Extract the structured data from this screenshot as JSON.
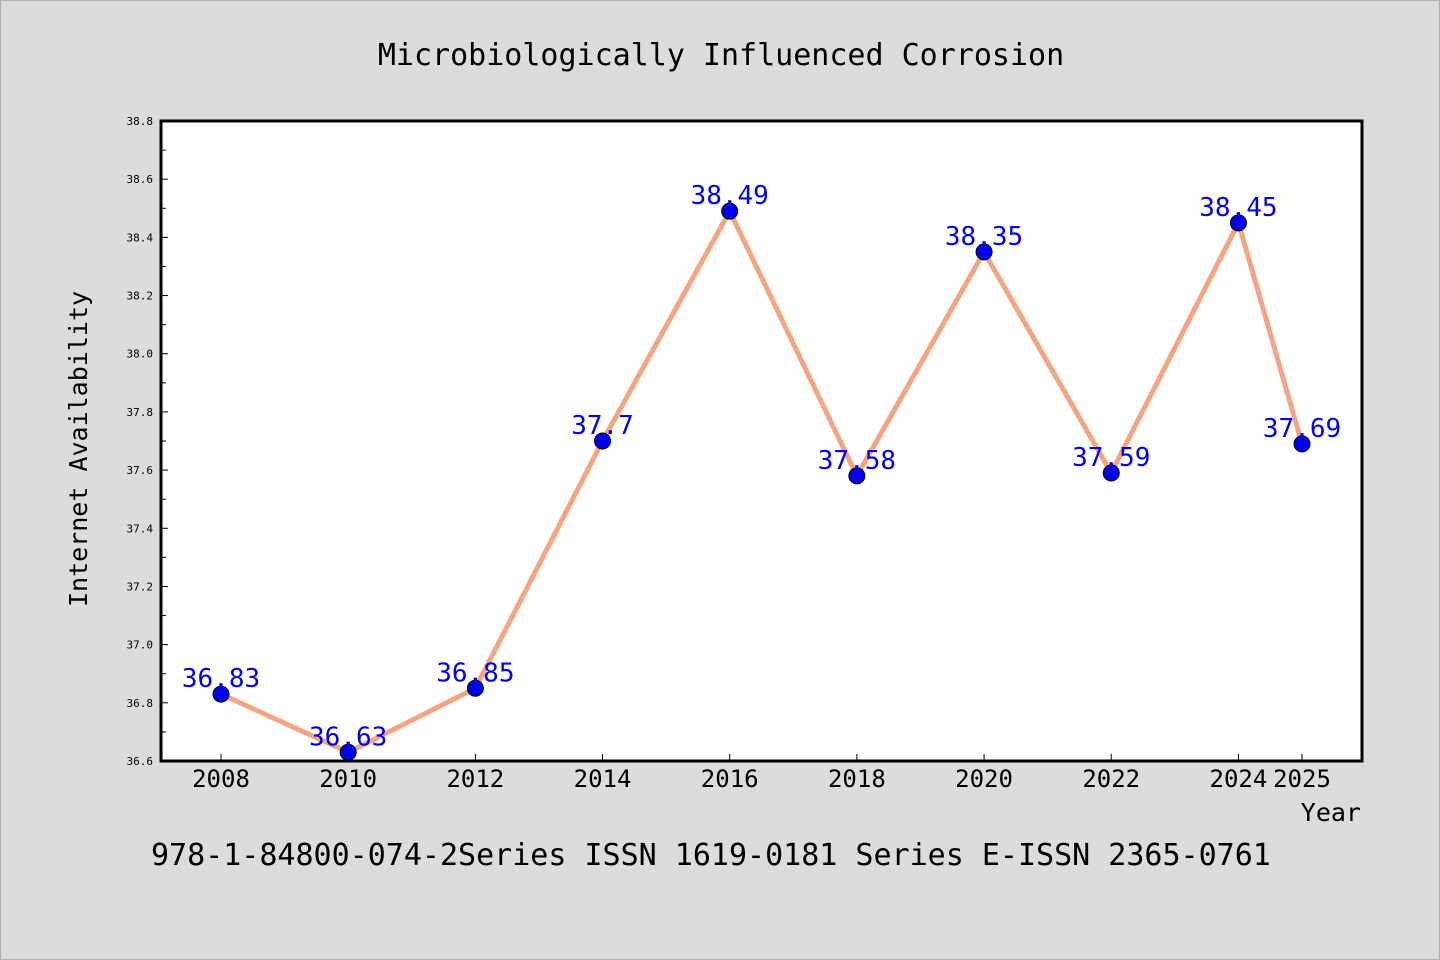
{
  "chart_data": {
    "type": "line",
    "title": "Microbiologically Influenced Corrosion",
    "xlabel": "Year",
    "ylabel": "Internet Availability",
    "footer": "978-1-84800-074-2Series ISSN 1619-0181 Series E-ISSN 2365-0761",
    "categories": [
      "2008",
      "2010",
      "2012",
      "2014",
      "2016",
      "2018",
      "2020",
      "2022",
      "2024",
      "2025"
    ],
    "series": [
      {
        "values": [
          36.83,
          36.63,
          36.85,
          37.7,
          38.49,
          37.58,
          38.35,
          37.59,
          38.45,
          37.69
        ],
        "value_labels": [
          "36.83",
          "36.63",
          "36.85",
          "37.7",
          "38.49",
          "37.58",
          "38.35",
          "37.59",
          "38.45",
          "37.69"
        ],
        "line_color": "#f4a582",
        "marker_color": "#0000ee"
      }
    ],
    "ylim": [
      36.6,
      38.8
    ],
    "yticks": [
      "36.6",
      "36.8",
      "37.0",
      "37.2",
      "37.4",
      "37.6",
      "37.8",
      "38.0",
      "38.2",
      "38.4",
      "38.6",
      "38.8"
    ],
    "label_color": "#0000ee",
    "background": "#dcdcdc",
    "plot_background": "#ffffff",
    "grid": false,
    "legend": "none"
  }
}
